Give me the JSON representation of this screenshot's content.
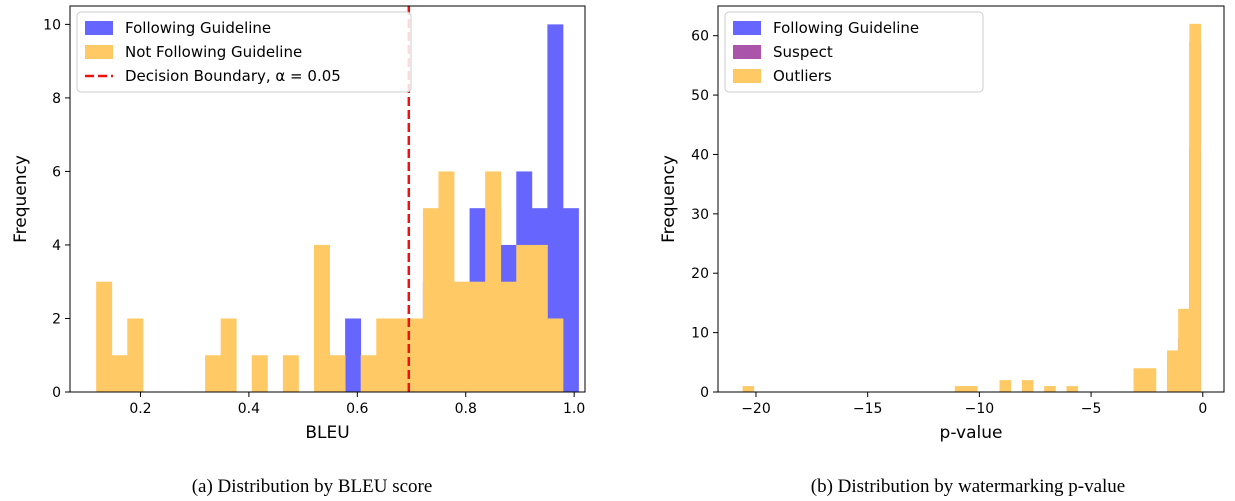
{
  "chart_data": [
    {
      "type": "histogram",
      "caption": "(a) Distribution by BLEU score",
      "xlabel": "BLEU",
      "ylabel": "Frequency",
      "xlim": [
        0.07,
        1.02
      ],
      "ylim": [
        0,
        10.5
      ],
      "xticks": [
        0.2,
        0.4,
        0.6,
        0.8,
        1.0
      ],
      "xtick_labels": [
        "0.2",
        "0.4",
        "0.6",
        "0.8",
        "1.0"
      ],
      "yticks": [
        0,
        2,
        4,
        6,
        8,
        10
      ],
      "ytick_labels": [
        "0",
        "2",
        "4",
        "6",
        "8",
        "10"
      ],
      "bin_start": 0.1183,
      "bin_width": 0.0287,
      "series": [
        {
          "name": "Following Guideline",
          "color": "#6666ff",
          "values": [
            0,
            0,
            0,
            0,
            0,
            0,
            0,
            0,
            0,
            0,
            0,
            0,
            0,
            0,
            0,
            0,
            2,
            0,
            1,
            1,
            0,
            3,
            2,
            2,
            5,
            5,
            4,
            6,
            5,
            10,
            5
          ]
        },
        {
          "name": "Not Following Guideline",
          "color": "#ffc966",
          "values": [
            3,
            1,
            2,
            0,
            0,
            0,
            0,
            1,
            2,
            0,
            1,
            0,
            1,
            0,
            4,
            1,
            0,
            1,
            2,
            2,
            2,
            5,
            6,
            3,
            3,
            6,
            3,
            4,
            4,
            2,
            0
          ]
        }
      ],
      "vline": {
        "x": 0.695,
        "label": "Decision Boundary, α = 0.05",
        "color": "#ee1111"
      },
      "legend": "upper-left",
      "grid": false
    },
    {
      "type": "histogram",
      "caption": "(b) Distribution by watermarking p-value",
      "xlabel": "p-value",
      "ylabel": "Frequency",
      "xlim": [
        -21.7,
        0.95
      ],
      "ylim": [
        0,
        65
      ],
      "xticks": [
        -20,
        -15,
        -10,
        -5,
        0
      ],
      "xtick_labels": [
        "−20",
        "−15",
        "−10",
        "−5",
        "0"
      ],
      "yticks": [
        0,
        10,
        20,
        30,
        40,
        50,
        60
      ],
      "ytick_labels": [
        "0",
        "10",
        "20",
        "30",
        "40",
        "50",
        "60"
      ],
      "bin_start": -20.6,
      "bin_width": 0.5,
      "series": [
        {
          "name": "Following Guideline",
          "color": "#6666ff",
          "values": [
            0,
            0,
            0,
            0,
            0,
            0,
            0,
            0,
            0,
            0,
            0,
            0,
            0,
            0,
            0,
            0,
            0,
            0,
            0,
            0,
            0,
            0,
            0,
            0,
            0,
            0,
            0,
            0,
            0,
            0,
            0,
            0,
            0,
            0,
            0,
            0,
            0,
            0,
            0,
            0,
            41
          ]
        },
        {
          "name": "Suspect",
          "color": "#aa55aa",
          "values": [
            0,
            0,
            0,
            0,
            0,
            0,
            0,
            0,
            0,
            0,
            0,
            0,
            0,
            0,
            0,
            0,
            0,
            0,
            0,
            0,
            0,
            0,
            0,
            0,
            0,
            0,
            0,
            0,
            0,
            0,
            0,
            0,
            0,
            0,
            0,
            0,
            0,
            0,
            5,
            9,
            59
          ]
        },
        {
          "name": "Outliers",
          "color": "#ffc966",
          "values": [
            1,
            0,
            0,
            0,
            0,
            0,
            0,
            0,
            0,
            0,
            0,
            0,
            0,
            0,
            0,
            0,
            0,
            0,
            0,
            1,
            1,
            0,
            0,
            2,
            0,
            2,
            0,
            1,
            0,
            1,
            0,
            0,
            0,
            0,
            0,
            4,
            4,
            0,
            7,
            14,
            62
          ]
        }
      ],
      "legend": "upper-left",
      "grid": false
    }
  ]
}
